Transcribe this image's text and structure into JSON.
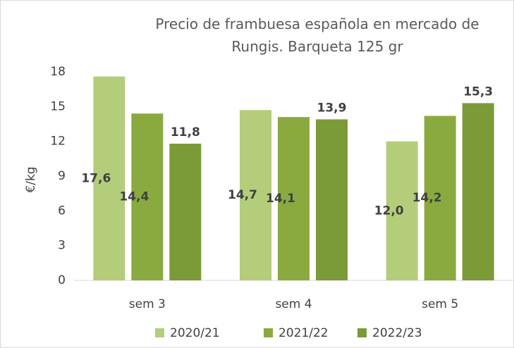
{
  "chart_data": {
    "type": "bar",
    "title": "Precio de frambuesa española en mercado de\nRungis. Barqueta 125 gr",
    "y_label": "€/kg",
    "categories": [
      "sem 3",
      "sem 4",
      "sem 5"
    ],
    "series": [
      {
        "name": "2020/21",
        "color": "#b4cd7b",
        "values": [
          17.6,
          14.7,
          12.0
        ],
        "value_labels": [
          "17,6",
          "14,7",
          "12,0"
        ]
      },
      {
        "name": "2021/22",
        "color": "#8aaa40",
        "values": [
          14.4,
          14.1,
          14.2
        ],
        "value_labels": [
          "14,4",
          "14,1",
          "14,2"
        ]
      },
      {
        "name": "2022/23",
        "color": "#7b9a38",
        "values": [
          11.8,
          13.9,
          15.3
        ],
        "value_labels": [
          "11,8",
          "13,9",
          "15,3"
        ]
      }
    ],
    "ylim": [
      0,
      18
    ],
    "yticks": [
      0,
      3,
      6,
      9,
      12,
      15,
      18
    ],
    "grid": false,
    "legend": "bottom"
  }
}
